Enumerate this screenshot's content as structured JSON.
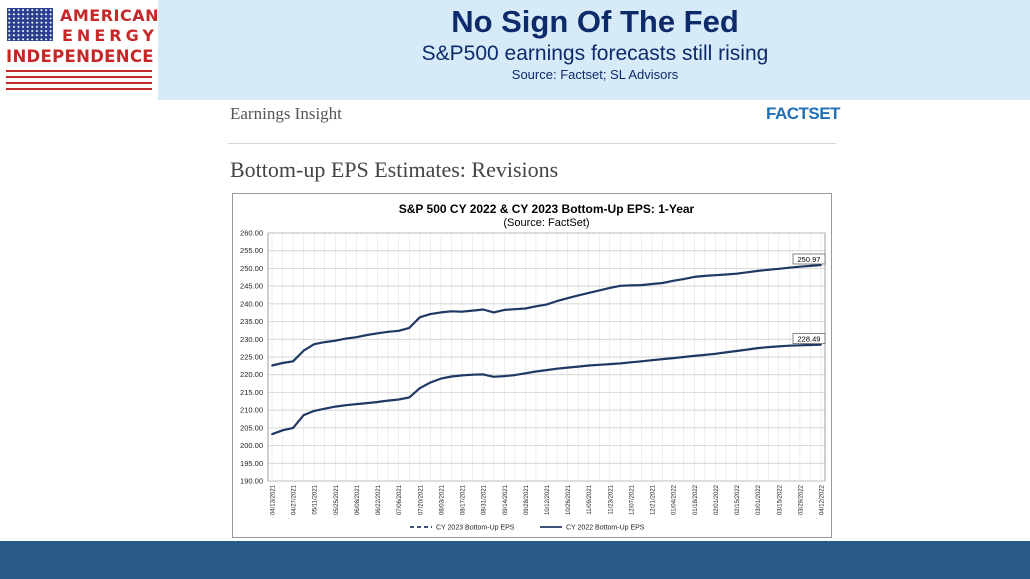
{
  "logo": {
    "line1": "AMERICAN",
    "line2": "ENERGY",
    "line3": "INDEPENDENCE"
  },
  "header": {
    "title": "No Sign Of The Fed",
    "subtitle": "S&P500 earnings forecasts still rising",
    "source": "Source: Factset; SL Advisors"
  },
  "doc": {
    "header_left": "Earnings Insight",
    "brand": "FACTSET",
    "section_title": "Bottom-up EPS Estimates: Revisions"
  },
  "colors": {
    "header_bg": "#d6eaf8",
    "title": "#0d2a6b",
    "footer": "#275a86",
    "series": "#1f3864"
  },
  "chart_data": {
    "type": "line",
    "title": "S&P 500 CY 2022 & CY 2023 Bottom-Up  EPS: 1-Year",
    "subtitle": "(Source: FactSet)",
    "ylim": [
      190,
      260
    ],
    "yticks": [
      "190.00",
      "195.00",
      "200.00",
      "205.00",
      "210.00",
      "215.00",
      "220.00",
      "225.00",
      "230.00",
      "235.00",
      "240.00",
      "245.00",
      "250.00",
      "255.00",
      "260.00"
    ],
    "grid": true,
    "legend_position": "bottom",
    "x": [
      "04/13/2021",
      "04/20/2021",
      "04/27/2021",
      "05/04/2021",
      "05/11/2021",
      "05/18/2021",
      "05/25/2021",
      "06/01/2021",
      "06/08/2021",
      "06/15/2021",
      "06/22/2021",
      "06/29/2021",
      "07/06/2021",
      "07/13/2021",
      "07/20/2021",
      "07/27/2021",
      "08/03/2021",
      "08/10/2021",
      "08/17/2021",
      "08/24/2021",
      "08/31/2021",
      "09/07/2021",
      "09/14/2021",
      "09/21/2021",
      "09/28/2021",
      "10/05/2021",
      "10/12/2021",
      "10/19/2021",
      "10/26/2021",
      "11/02/2021",
      "11/09/2021",
      "11/16/2021",
      "11/23/2021",
      "11/30/2021",
      "12/07/2021",
      "12/14/2021",
      "12/21/2021",
      "12/28/2021",
      "01/04/2022",
      "01/11/2022",
      "01/18/2022",
      "01/25/2022",
      "02/01/2022",
      "02/08/2022",
      "02/15/2022",
      "02/22/2022",
      "03/01/2022",
      "03/08/2022",
      "03/15/2022",
      "03/22/2022",
      "03/29/2022",
      "04/05/2022",
      "04/12/2022"
    ],
    "series": [
      {
        "name": "CY 2023 Bottom-Up EPS",
        "style": "dashed",
        "end_label": "250.97",
        "values": [
          222.6,
          223.3,
          223.8,
          226.8,
          228.6,
          229.2,
          229.6,
          230.2,
          230.6,
          231.2,
          231.7,
          232.1,
          232.4,
          233.2,
          236.2,
          237.1,
          237.6,
          237.9,
          237.8,
          238.1,
          238.4,
          237.6,
          238.3,
          238.5,
          238.7,
          239.3,
          239.8,
          240.8,
          241.6,
          242.4,
          243.1,
          243.8,
          244.5,
          245.1,
          245.2,
          245.3,
          245.6,
          245.9,
          246.5,
          247.0,
          247.6,
          247.9,
          248.1,
          248.3,
          248.5,
          248.9,
          249.3,
          249.6,
          249.9,
          250.2,
          250.5,
          250.7,
          250.97
        ]
      },
      {
        "name": "CY 2022 Bottom-Up EPS",
        "style": "solid",
        "end_label": "228.49",
        "values": [
          203.2,
          204.3,
          205.0,
          208.6,
          209.8,
          210.4,
          211.0,
          211.4,
          211.7,
          212.0,
          212.3,
          212.7,
          213.0,
          213.6,
          216.2,
          217.8,
          218.9,
          219.5,
          219.8,
          220.0,
          220.1,
          219.4,
          219.6,
          219.9,
          220.4,
          220.9,
          221.3,
          221.7,
          222.0,
          222.3,
          222.6,
          222.8,
          223.0,
          223.2,
          223.5,
          223.8,
          224.1,
          224.4,
          224.7,
          225.0,
          225.3,
          225.6,
          225.9,
          226.3,
          226.7,
          227.1,
          227.5,
          227.8,
          228.0,
          228.2,
          228.3,
          228.4,
          228.49
        ]
      }
    ]
  }
}
